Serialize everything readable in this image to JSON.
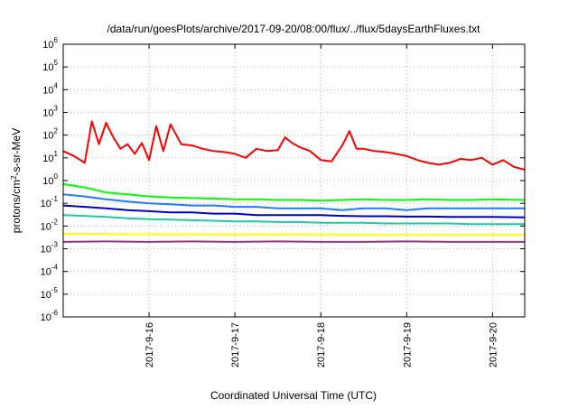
{
  "chart_data": {
    "type": "line",
    "title": "/data/run/goesPlots/archive/2017-09-20/08:00/flux/../flux/5daysEarthFluxes.txt",
    "xlabel": "Coordinated Universal Time (UTC)",
    "ylabel": "protons/cm²-s-sr-MeV",
    "ylabel_parts": {
      "pre": "protons/cm",
      "sup": "2",
      "post": "-s-sr-MeV"
    },
    "x_tick_labels": [
      "2017-9-16",
      "2017-9-17",
      "2017-9-18",
      "2017-9-19",
      "2017-9-20"
    ],
    "xlim": [
      "2017-09-15 00:00",
      "2017-09-20 09:00"
    ],
    "y_scale": "log",
    "ylim": [
      1e-06,
      1000000.0
    ],
    "y_ticks": [
      {
        "base": "10",
        "exp": "-6"
      },
      {
        "base": "10",
        "exp": "-5"
      },
      {
        "base": "10",
        "exp": "-4"
      },
      {
        "base": "10",
        "exp": "-3"
      },
      {
        "base": "10",
        "exp": "-2"
      },
      {
        "base": "10",
        "exp": "-1"
      },
      {
        "base": "10",
        "exp": "0"
      },
      {
        "base": "10",
        "exp": "1"
      },
      {
        "base": "10",
        "exp": "2"
      },
      {
        "base": "10",
        "exp": "3"
      },
      {
        "base": "10",
        "exp": "4"
      },
      {
        "base": "10",
        "exp": "5"
      },
      {
        "base": "10",
        "exp": "6"
      }
    ],
    "grid": true,
    "series": [
      {
        "color": "#ff0000",
        "x": [
          "2017-09-15 00:00",
          "2017-09-15 03:00",
          "2017-09-15 06:00",
          "2017-09-15 08:00",
          "2017-09-15 10:00",
          "2017-09-15 12:00",
          "2017-09-15 14:00",
          "2017-09-15 16:00",
          "2017-09-15 18:00",
          "2017-09-15 20:00",
          "2017-09-15 22:00",
          "2017-09-16 00:00",
          "2017-09-16 02:00",
          "2017-09-16 04:00",
          "2017-09-16 06:00",
          "2017-09-16 09:00",
          "2017-09-16 12:00",
          "2017-09-16 15:00",
          "2017-09-16 18:00",
          "2017-09-16 21:00",
          "2017-09-17 00:00",
          "2017-09-17 03:00",
          "2017-09-17 06:00",
          "2017-09-17 09:00",
          "2017-09-17 12:00",
          "2017-09-17 14:00",
          "2017-09-17 16:00",
          "2017-09-17 18:00",
          "2017-09-17 21:00",
          "2017-09-18 00:00",
          "2017-09-18 03:00",
          "2017-09-18 06:00",
          "2017-09-18 08:00",
          "2017-09-18 10:00",
          "2017-09-18 12:00",
          "2017-09-18 15:00",
          "2017-09-18 18:00",
          "2017-09-18 21:00",
          "2017-09-19 00:00",
          "2017-09-19 03:00",
          "2017-09-19 06:00",
          "2017-09-19 09:00",
          "2017-09-19 12:00",
          "2017-09-19 15:00",
          "2017-09-19 18:00",
          "2017-09-19 21:00",
          "2017-09-20 00:00",
          "2017-09-20 03:00",
          "2017-09-20 06:00",
          "2017-09-20 09:00"
        ],
        "y": [
          20,
          12,
          6,
          400,
          40,
          350,
          80,
          25,
          40,
          15,
          45,
          8,
          250,
          20,
          300,
          40,
          35,
          25,
          20,
          18,
          15,
          10,
          25,
          20,
          22,
          80,
          45,
          30,
          20,
          8,
          7,
          35,
          150,
          25,
          25,
          20,
          18,
          15,
          12,
          8,
          6,
          5,
          6,
          9,
          8,
          10,
          5,
          8,
          4,
          3
        ]
      },
      {
        "color": "#00ff00",
        "x": [
          "2017-09-15 00:00",
          "2017-09-15 06:00",
          "2017-09-15 12:00",
          "2017-09-15 18:00",
          "2017-09-16 00:00",
          "2017-09-16 06:00",
          "2017-09-16 12:00",
          "2017-09-16 18:00",
          "2017-09-17 00:00",
          "2017-09-17 06:00",
          "2017-09-17 12:00",
          "2017-09-17 18:00",
          "2017-09-18 00:00",
          "2017-09-18 06:00",
          "2017-09-18 12:00",
          "2017-09-18 18:00",
          "2017-09-19 00:00",
          "2017-09-19 06:00",
          "2017-09-19 12:00",
          "2017-09-19 18:00",
          "2017-09-20 00:00",
          "2017-09-20 09:00"
        ],
        "y": [
          0.7,
          0.5,
          0.3,
          0.25,
          0.2,
          0.18,
          0.17,
          0.16,
          0.15,
          0.15,
          0.14,
          0.14,
          0.13,
          0.14,
          0.15,
          0.14,
          0.14,
          0.15,
          0.14,
          0.14,
          0.15,
          0.14
        ]
      },
      {
        "color": "#1e7bff",
        "x": [
          "2017-09-15 00:00",
          "2017-09-15 06:00",
          "2017-09-15 12:00",
          "2017-09-15 18:00",
          "2017-09-16 00:00",
          "2017-09-16 06:00",
          "2017-09-16 12:00",
          "2017-09-16 18:00",
          "2017-09-17 00:00",
          "2017-09-17 06:00",
          "2017-09-17 12:00",
          "2017-09-17 18:00",
          "2017-09-18 00:00",
          "2017-09-18 06:00",
          "2017-09-18 12:00",
          "2017-09-18 18:00",
          "2017-09-19 00:00",
          "2017-09-19 06:00",
          "2017-09-19 12:00",
          "2017-09-19 18:00",
          "2017-09-20 00:00",
          "2017-09-20 09:00"
        ],
        "y": [
          0.25,
          0.2,
          0.15,
          0.12,
          0.1,
          0.09,
          0.08,
          0.08,
          0.07,
          0.07,
          0.06,
          0.06,
          0.06,
          0.05,
          0.06,
          0.06,
          0.05,
          0.06,
          0.06,
          0.06,
          0.06,
          0.06
        ]
      },
      {
        "color": "#0000cc",
        "x": [
          "2017-09-15 00:00",
          "2017-09-15 06:00",
          "2017-09-15 12:00",
          "2017-09-15 18:00",
          "2017-09-16 00:00",
          "2017-09-16 06:00",
          "2017-09-16 12:00",
          "2017-09-16 18:00",
          "2017-09-17 00:00",
          "2017-09-17 06:00",
          "2017-09-17 12:00",
          "2017-09-17 18:00",
          "2017-09-18 00:00",
          "2017-09-18 06:00",
          "2017-09-18 12:00",
          "2017-09-18 18:00",
          "2017-09-19 00:00",
          "2017-09-19 06:00",
          "2017-09-19 12:00",
          "2017-09-19 18:00",
          "2017-09-20 00:00",
          "2017-09-20 09:00"
        ],
        "y": [
          0.08,
          0.07,
          0.06,
          0.05,
          0.045,
          0.04,
          0.04,
          0.035,
          0.035,
          0.03,
          0.03,
          0.03,
          0.03,
          0.028,
          0.027,
          0.027,
          0.026,
          0.026,
          0.025,
          0.025,
          0.025,
          0.024
        ]
      },
      {
        "color": "#20c8a0",
        "x": [
          "2017-09-15 00:00",
          "2017-09-15 06:00",
          "2017-09-15 12:00",
          "2017-09-15 18:00",
          "2017-09-16 00:00",
          "2017-09-16 06:00",
          "2017-09-16 12:00",
          "2017-09-16 18:00",
          "2017-09-17 00:00",
          "2017-09-17 06:00",
          "2017-09-17 12:00",
          "2017-09-17 18:00",
          "2017-09-18 00:00",
          "2017-09-18 06:00",
          "2017-09-18 12:00",
          "2017-09-18 18:00",
          "2017-09-19 00:00",
          "2017-09-19 06:00",
          "2017-09-19 12:00",
          "2017-09-19 18:00",
          "2017-09-20 00:00",
          "2017-09-20 09:00"
        ],
        "y": [
          0.03,
          0.028,
          0.025,
          0.022,
          0.02,
          0.019,
          0.018,
          0.017,
          0.016,
          0.016,
          0.015,
          0.015,
          0.014,
          0.014,
          0.014,
          0.013,
          0.013,
          0.013,
          0.013,
          0.012,
          0.012,
          0.012
        ]
      },
      {
        "color": "#ffff00",
        "x": [
          "2017-09-15 00:00",
          "2017-09-15 12:00",
          "2017-09-16 00:00",
          "2017-09-16 12:00",
          "2017-09-17 00:00",
          "2017-09-17 12:00",
          "2017-09-18 00:00",
          "2017-09-18 12:00",
          "2017-09-19 00:00",
          "2017-09-19 12:00",
          "2017-09-20 00:00",
          "2017-09-20 09:00"
        ],
        "y": [
          0.0045,
          0.0044,
          0.0043,
          0.0043,
          0.0042,
          0.0042,
          0.0042,
          0.0041,
          0.0041,
          0.0041,
          0.0041,
          0.0041
        ]
      },
      {
        "color": "#8b3a7a",
        "x": [
          "2017-09-15 00:00",
          "2017-09-15 12:00",
          "2017-09-16 00:00",
          "2017-09-16 12:00",
          "2017-09-17 00:00",
          "2017-09-17 12:00",
          "2017-09-18 00:00",
          "2017-09-18 12:00",
          "2017-09-19 00:00",
          "2017-09-19 12:00",
          "2017-09-20 00:00",
          "2017-09-20 09:00"
        ],
        "y": [
          0.002,
          0.0021,
          0.002,
          0.0021,
          0.002,
          0.0021,
          0.002,
          0.002,
          0.0021,
          0.002,
          0.002,
          0.002
        ]
      }
    ]
  }
}
